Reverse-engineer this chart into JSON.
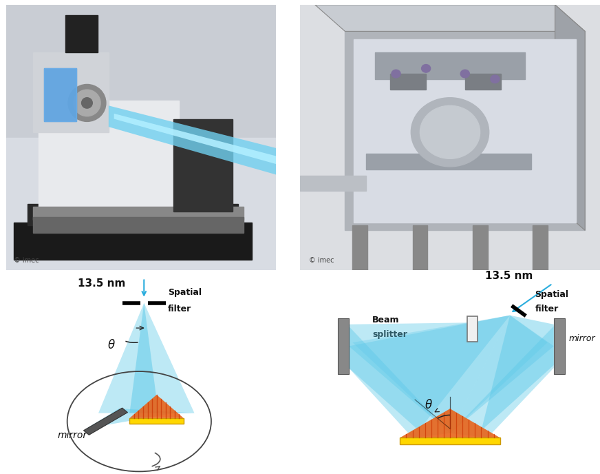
{
  "bg_color": "#ffffff",
  "left_diagram": {
    "title": "13.5 nm",
    "spatial_filter_label": [
      "Spatial",
      "filter"
    ],
    "mirror_label": "mirror",
    "theta_label": "θ",
    "beam_color": "#5BC8E8",
    "beam_alpha": 0.55,
    "mirror_color": "#606060",
    "wafer_color": "#FFD700",
    "interference_color": "#E8641A",
    "circle_color": "#333333"
  },
  "right_diagram": {
    "title": "13.5 nm",
    "spatial_filter_label": [
      "Spatial",
      "filter"
    ],
    "beam_splitter_label": [
      "Beam",
      "splitter"
    ],
    "mirror_label": "mirror",
    "theta_label": "θ",
    "beam_color": "#5BC8E8",
    "beam_alpha": 0.5,
    "mirror_color": "#808080",
    "wafer_color": "#FFD700",
    "interference_color": "#E8641A",
    "bs_color": "#E0E0E0"
  },
  "imec_text": "© imec",
  "font_size_label": 9,
  "font_size_title": 11,
  "font_size_theta": 10
}
